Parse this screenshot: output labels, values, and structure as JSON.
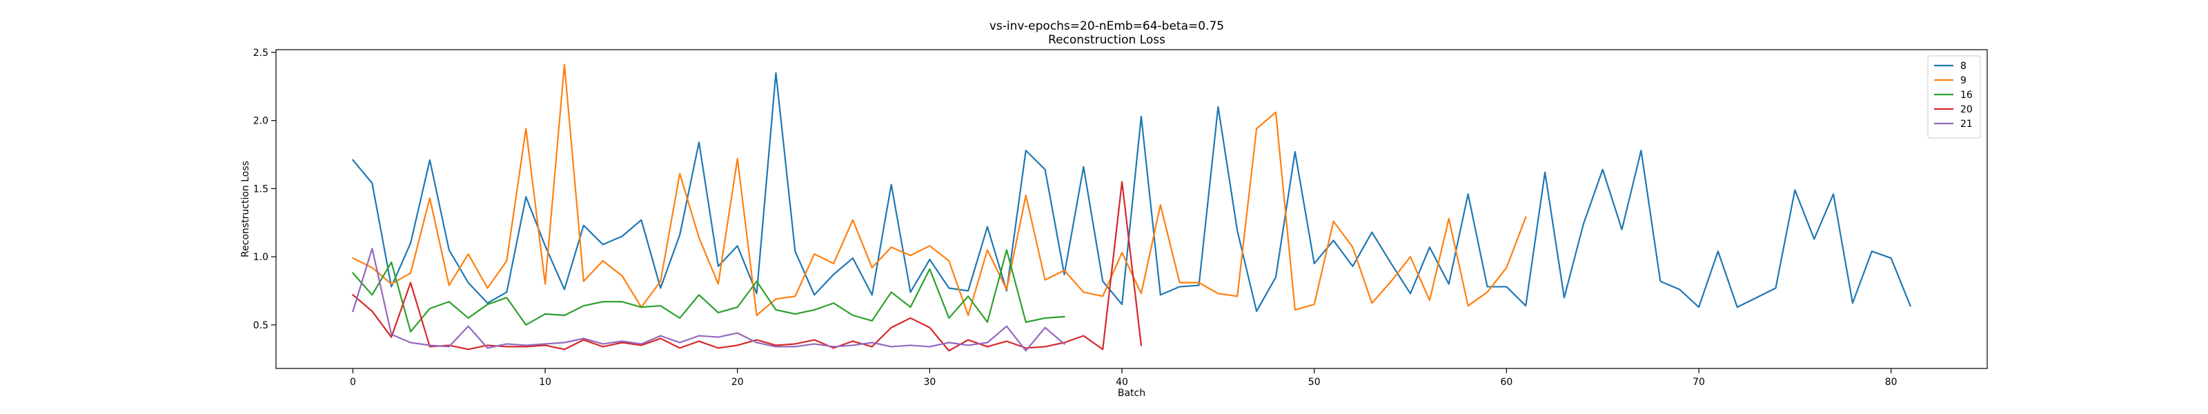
{
  "chart_data": {
    "type": "line",
    "title": "vs-inv-epochs=20-nEmb=64-beta=0.75",
    "subtitle": "Reconstruction Loss",
    "xlabel": "Batch",
    "ylabel": "Reconstruction Loss",
    "xlim": [
      -4,
      85
    ],
    "ylim": [
      0.18,
      2.52
    ],
    "xticks": [
      0,
      10,
      20,
      30,
      40,
      50,
      60,
      70,
      80
    ],
    "yticks": [
      0.5,
      1.0,
      1.5,
      2.0,
      2.5
    ],
    "xtick_labels": [
      "0",
      "10",
      "20",
      "30",
      "40",
      "50",
      "60",
      "70",
      "80"
    ],
    "ytick_labels": [
      "0.5",
      "1.0",
      "1.5",
      "2.0",
      "2.5"
    ],
    "grid": false,
    "legend_position": "top-right",
    "series": [
      {
        "name": "8",
        "color": "#1f77b4",
        "values": [
          1.71,
          1.54,
          0.78,
          1.1,
          1.71,
          1.05,
          0.81,
          0.66,
          0.74,
          1.44,
          1.08,
          0.76,
          1.23,
          1.09,
          1.15,
          1.27,
          0.77,
          1.16,
          1.84,
          0.93,
          1.08,
          0.73,
          2.35,
          1.04,
          0.72,
          0.87,
          0.99,
          0.72,
          1.53,
          0.74,
          0.98,
          0.77,
          0.75,
          1.22,
          0.75,
          1.78,
          1.64,
          0.87,
          1.66,
          0.82,
          0.65,
          2.03,
          0.72,
          0.78,
          0.79,
          2.1,
          1.19,
          0.6,
          0.85,
          1.77,
          0.95,
          1.12,
          0.93,
          1.18,
          0.95,
          0.73,
          1.07,
          0.8,
          1.46,
          0.78,
          0.78,
          0.64,
          1.62,
          0.7,
          1.24,
          1.64,
          1.2,
          1.78,
          0.82,
          0.76,
          0.63,
          1.04,
          0.63,
          0.7,
          0.77,
          1.49,
          1.13,
          1.46,
          0.66,
          1.04,
          0.99,
          0.64
        ]
      },
      {
        "name": "9",
        "color": "#ff7f0e",
        "values": [
          0.99,
          0.92,
          0.8,
          0.88,
          1.43,
          0.79,
          1.02,
          0.77,
          0.97,
          1.94,
          0.8,
          2.41,
          0.82,
          0.97,
          0.86,
          0.63,
          0.82,
          1.61,
          1.14,
          0.8,
          1.72,
          0.57,
          0.69,
          0.71,
          1.02,
          0.95,
          1.27,
          0.92,
          1.07,
          1.01,
          1.08,
          0.97,
          0.57,
          1.05,
          0.76,
          1.45,
          0.83,
          0.9,
          0.74,
          0.71,
          1.03,
          0.73,
          1.38,
          0.81,
          0.81,
          0.73,
          0.71,
          1.94,
          2.06,
          0.61,
          0.65,
          1.26,
          1.07,
          0.66,
          0.82,
          1.0,
          0.68,
          1.28,
          0.64,
          0.74,
          0.92,
          1.29
        ]
      },
      {
        "name": "16",
        "color": "#2ca02c",
        "values": [
          0.88,
          0.72,
          0.96,
          0.45,
          0.62,
          0.67,
          0.55,
          0.65,
          0.7,
          0.5,
          0.58,
          0.57,
          0.64,
          0.67,
          0.67,
          0.63,
          0.64,
          0.55,
          0.72,
          0.59,
          0.63,
          0.82,
          0.61,
          0.58,
          0.61,
          0.66,
          0.57,
          0.53,
          0.74,
          0.63,
          0.91,
          0.55,
          0.71,
          0.52,
          1.05,
          0.52,
          0.55,
          0.56
        ]
      },
      {
        "name": "20",
        "color": "#d62728",
        "values": [
          0.72,
          0.6,
          0.41,
          0.81,
          0.34,
          0.35,
          0.32,
          0.35,
          0.34,
          0.34,
          0.35,
          0.32,
          0.39,
          0.34,
          0.37,
          0.35,
          0.4,
          0.33,
          0.38,
          0.33,
          0.35,
          0.39,
          0.35,
          0.36,
          0.39,
          0.33,
          0.38,
          0.34,
          0.48,
          0.55,
          0.48,
          0.31,
          0.39,
          0.34,
          0.38,
          0.33,
          0.34,
          0.37,
          0.42,
          0.32,
          1.55,
          0.35
        ]
      },
      {
        "name": "21",
        "color": "#9467bd",
        "values": [
          0.6,
          1.06,
          0.43,
          0.37,
          0.35,
          0.34,
          0.49,
          0.33,
          0.36,
          0.35,
          0.36,
          0.37,
          0.4,
          0.36,
          0.38,
          0.36,
          0.42,
          0.37,
          0.42,
          0.41,
          0.44,
          0.37,
          0.34,
          0.34,
          0.36,
          0.34,
          0.35,
          0.37,
          0.34,
          0.35,
          0.34,
          0.37,
          0.35,
          0.37,
          0.49,
          0.31,
          0.48,
          0.36
        ]
      }
    ]
  }
}
